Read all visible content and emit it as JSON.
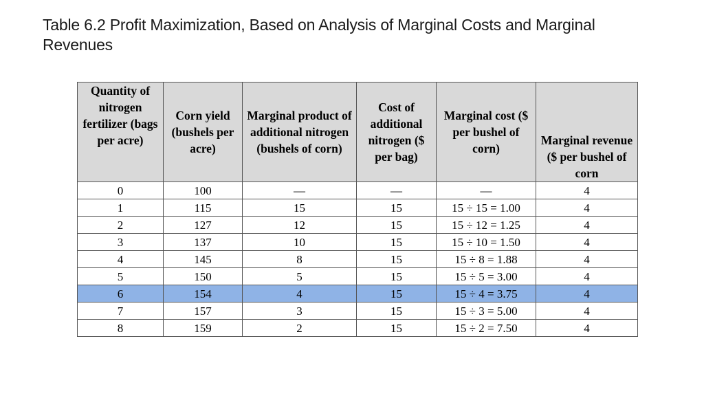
{
  "title": "Table 6.2  Profit Maximization, Based on Analysis of Marginal Costs and Marginal Revenues",
  "table": {
    "headers": [
      "Quantity of nitrogen fertilizer (bags per acre)",
      "Corn yield (bushels per acre)",
      "Marginal product of additional nitrogen (bushels of corn)",
      "Cost of additional nitrogen ($ per bag)",
      "Marginal cost ($ per bushel of corn)",
      "Marginal revenue ($ per bushel of corn"
    ],
    "rows": [
      [
        "0",
        "100",
        "—",
        "—",
        "—",
        "4"
      ],
      [
        "1",
        "115",
        "15",
        "15",
        "15 ÷ 15 = 1.00",
        "4"
      ],
      [
        "2",
        "127",
        "12",
        "15",
        "15 ÷ 12 = 1.25",
        "4"
      ],
      [
        "3",
        "137",
        "10",
        "15",
        "15 ÷ 10 = 1.50",
        "4"
      ],
      [
        "4",
        "145",
        "8",
        "15",
        "15 ÷ 8 = 1.88",
        "4"
      ],
      [
        "5",
        "150",
        "5",
        "15",
        "15 ÷ 5 = 3.00",
        "4"
      ],
      [
        "6",
        "154",
        "4",
        "15",
        "15 ÷ 4 = 3.75",
        "4"
      ],
      [
        "7",
        "157",
        "3",
        "15",
        "15 ÷ 3 = 5.00",
        "4"
      ],
      [
        "8",
        "159",
        "2",
        "15",
        "15 ÷ 2 = 7.50",
        "4"
      ]
    ],
    "highlighted_row": 6,
    "highlight_color": "#8fb3e6",
    "header_color": "#d9d9d9"
  }
}
